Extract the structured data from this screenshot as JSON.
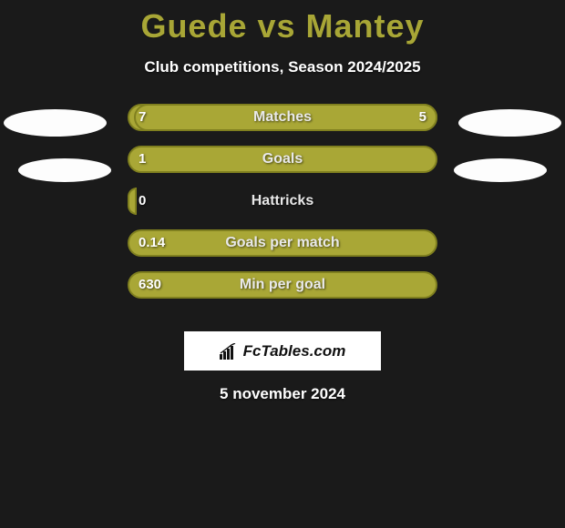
{
  "colors": {
    "page_bg": "#1a1a1a",
    "accent": "#a8a636",
    "bar_fill": "#a9a736",
    "bar_border": "#80801f",
    "ellipse": "#fdfdfd",
    "text": "#ffffff",
    "logo_bg": "#ffffff",
    "logo_text": "#111111"
  },
  "header": {
    "title": "Guede vs Mantey",
    "subtitle": "Club competitions, Season 2024/2025"
  },
  "comparison": {
    "rows": [
      {
        "label": "Matches",
        "left": "7",
        "right": "5",
        "left_pct": 100,
        "right_pct": 98
      },
      {
        "label": "Goals",
        "left": "1",
        "right": "",
        "left_pct": 100,
        "right_pct": 0
      },
      {
        "label": "Hattricks",
        "left": "0",
        "right": "",
        "left_pct": 3,
        "right_pct": 0
      },
      {
        "label": "Goals per match",
        "left": "0.14",
        "right": "",
        "left_pct": 100,
        "right_pct": 0
      },
      {
        "label": "Min per goal",
        "left": "630",
        "right": "",
        "left_pct": 100,
        "right_pct": 0
      }
    ]
  },
  "branding": {
    "site_name": "FcTables.com"
  },
  "footer": {
    "date": "5 november 2024"
  }
}
